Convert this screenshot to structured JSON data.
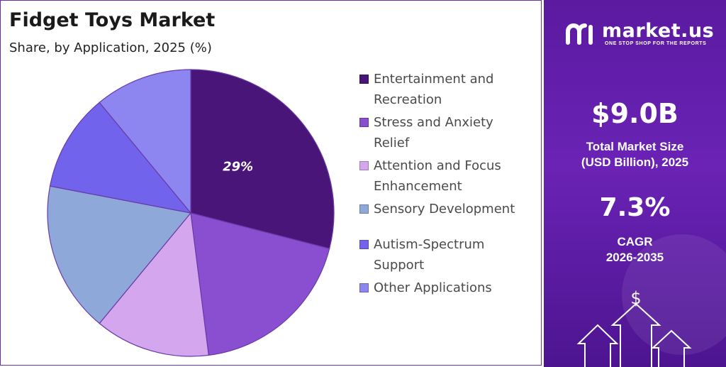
{
  "header": {
    "title": "Fidget Toys Market",
    "subtitle": "Share, by Application, 2025 (%)"
  },
  "chart_data": {
    "type": "pie",
    "categories": [
      "Entertainment and Recreation",
      "Stress and Anxiety Relief",
      "Attention and Focus Enhancement",
      "Sensory Development",
      "Autism-Spectrum Support",
      "Other Applications"
    ],
    "values": [
      29,
      19,
      13,
      17,
      11,
      11
    ],
    "colors": [
      "#4a1578",
      "#8a4fd0",
      "#d3a6ee",
      "#8ea8da",
      "#7263ec",
      "#8e86f0"
    ],
    "data_labels": [
      "29%",
      "",
      "",
      "",
      "",
      ""
    ]
  },
  "legend": {
    "items": [
      {
        "lines": [
          "Entertainment and",
          "Recreation"
        ]
      },
      {
        "lines": [
          "Stress and Anxiety",
          "Relief"
        ]
      },
      {
        "lines": [
          "Attention and Focus",
          "Enhancement"
        ]
      },
      {
        "lines": [
          "Sensory Development"
        ]
      },
      {
        "lines": [
          "Autism-Spectrum",
          "Support"
        ]
      },
      {
        "lines": [
          "Other Applications"
        ]
      }
    ]
  },
  "sidebar": {
    "brand": "market.us",
    "tagline": "ONE STOP SHOP FOR THE REPORTS",
    "market_size_value": "$9.0B",
    "market_size_label_1": "Total Market Size",
    "market_size_label_2": "(USD Billion), 2025",
    "cagr_value": "7.3%",
    "cagr_label_1": "CAGR",
    "cagr_label_2": "2026-2035",
    "icons": [
      "logo-icon",
      "dollar-icon",
      "arrow-up-icon"
    ]
  }
}
